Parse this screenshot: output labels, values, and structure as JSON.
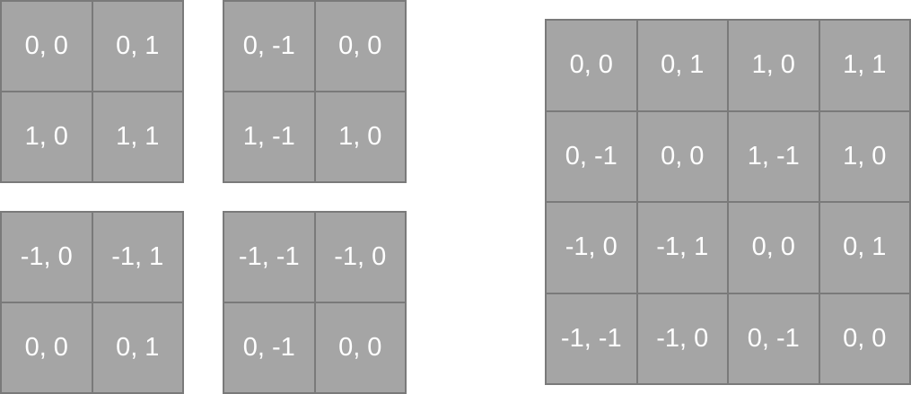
{
  "small_grids": [
    {
      "cells": [
        "0, 0",
        "0, 1",
        "1, 0",
        "1, 1"
      ]
    },
    {
      "cells": [
        "0, -1",
        "0, 0",
        "1, -1",
        "1, 0"
      ]
    },
    {
      "cells": [
        "-1, 0",
        "-1, 1",
        "0, 0",
        "0, 1"
      ]
    },
    {
      "cells": [
        "-1, -1",
        "-1, 0",
        "0, -1",
        "0, 0"
      ]
    }
  ],
  "large_grid": {
    "cells": [
      "0, 0",
      "0, 1",
      "1, 0",
      "1, 1",
      "0, -1",
      "0, 0",
      "1, -1",
      "1, 0",
      "-1, 0",
      "-1, 1",
      "0, 0",
      "0, 1",
      "-1, -1",
      "-1, 0",
      "0, -1",
      "0, 0"
    ]
  },
  "colors": {
    "cell_fill": "#a5a5a5",
    "grid_line": "#7a7a7a",
    "text": "#ffffff"
  }
}
